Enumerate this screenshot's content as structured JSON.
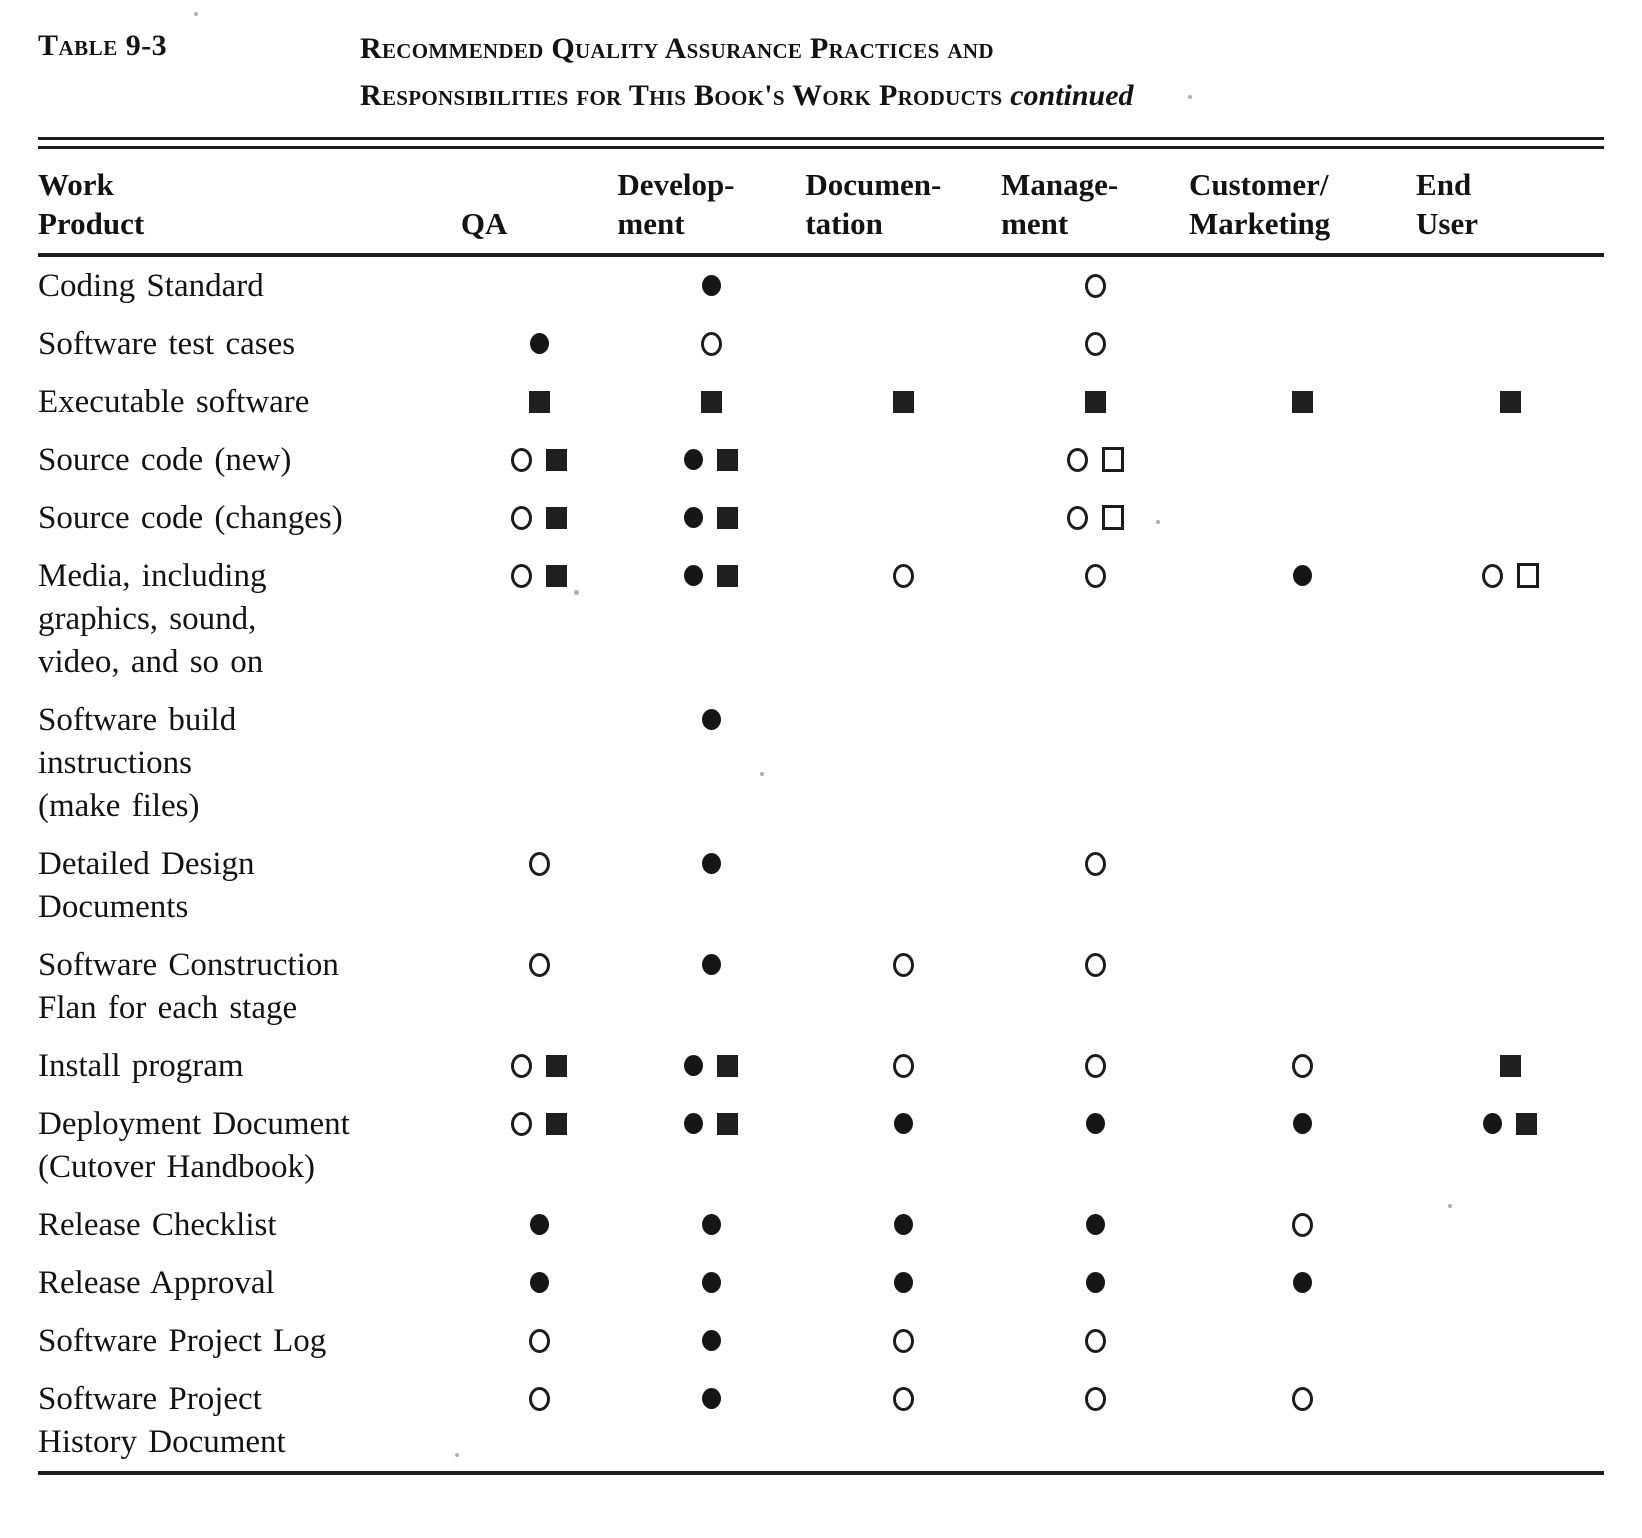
{
  "caption": {
    "label": "Table 9-3",
    "title_line1": "Recommended Quality Assurance Practices and",
    "title_line2": "Responsibilities for This Book's Work Products",
    "continued": "continued"
  },
  "columns": [
    {
      "key": "product",
      "lines": [
        "Work",
        "Product"
      ]
    },
    {
      "key": "qa",
      "lines": [
        "QA"
      ]
    },
    {
      "key": "development",
      "lines": [
        "Develop-",
        "ment"
      ]
    },
    {
      "key": "documentation",
      "lines": [
        "Documen-",
        "tation"
      ]
    },
    {
      "key": "management",
      "lines": [
        "Manage-",
        "ment"
      ]
    },
    {
      "key": "customer_marketing",
      "lines": [
        "Customer/",
        "Marketing"
      ]
    },
    {
      "key": "end_user",
      "lines": [
        "End",
        "User"
      ]
    }
  ],
  "symbol_legend": {
    "fc": "filled-circle",
    "oc": "open-circle",
    "fs": "filled-square",
    "os": "open-square"
  },
  "colors": {
    "ink": "#1d1d1d",
    "paper": "#ffffff"
  },
  "rows": [
    {
      "product_lines": [
        "Coding Standard"
      ],
      "qa": [],
      "development": [
        "fc"
      ],
      "documentation": [],
      "management": [
        "oc"
      ],
      "customer_marketing": [],
      "end_user": []
    },
    {
      "product_lines": [
        "Software test cases"
      ],
      "qa": [
        "fc"
      ],
      "development": [
        "oc"
      ],
      "documentation": [],
      "management": [
        "oc"
      ],
      "customer_marketing": [],
      "end_user": []
    },
    {
      "product_lines": [
        "Executable software"
      ],
      "qa": [
        "fs"
      ],
      "development": [
        "fs"
      ],
      "documentation": [
        "fs"
      ],
      "management": [
        "fs"
      ],
      "customer_marketing": [
        "fs"
      ],
      "end_user": [
        "fs"
      ]
    },
    {
      "product_lines": [
        "Source code (new)"
      ],
      "qa": [
        "oc",
        "fs"
      ],
      "development": [
        "fc",
        "fs"
      ],
      "documentation": [],
      "management": [
        "oc",
        "os"
      ],
      "customer_marketing": [],
      "end_user": []
    },
    {
      "product_lines": [
        "Source code (changes)"
      ],
      "qa": [
        "oc",
        "fs"
      ],
      "development": [
        "fc",
        "fs"
      ],
      "documentation": [],
      "management": [
        "oc",
        "os"
      ],
      "customer_marketing": [],
      "end_user": []
    },
    {
      "product_lines": [
        "Media, including",
        "graphics, sound,",
        "video, and so on"
      ],
      "qa": [
        "oc",
        "fs"
      ],
      "development": [
        "fc",
        "fs"
      ],
      "documentation": [
        "oc"
      ],
      "management": [
        "oc"
      ],
      "customer_marketing": [
        "fc"
      ],
      "end_user": [
        "oc",
        "os"
      ]
    },
    {
      "product_lines": [
        "Software build",
        "instructions",
        "(make files)"
      ],
      "qa": [],
      "development": [
        "fc"
      ],
      "documentation": [],
      "management": [],
      "customer_marketing": [],
      "end_user": []
    },
    {
      "product_lines": [
        "Detailed Design",
        "Documents"
      ],
      "qa": [
        "oc"
      ],
      "development": [
        "fc"
      ],
      "documentation": [],
      "management": [
        "oc"
      ],
      "customer_marketing": [],
      "end_user": []
    },
    {
      "product_lines": [
        "Software Construction",
        "Flan for each stage"
      ],
      "qa": [
        "oc"
      ],
      "development": [
        "fc"
      ],
      "documentation": [
        "oc"
      ],
      "management": [
        "oc"
      ],
      "customer_marketing": [],
      "end_user": []
    },
    {
      "product_lines": [
        "Install program"
      ],
      "qa": [
        "oc",
        "fs"
      ],
      "development": [
        "fc",
        "fs"
      ],
      "documentation": [
        "oc"
      ],
      "management": [
        "oc"
      ],
      "customer_marketing": [
        "oc"
      ],
      "end_user": [
        "fs"
      ]
    },
    {
      "product_lines": [
        "Deployment Document",
        "(Cutover Handbook)"
      ],
      "qa": [
        "oc",
        "fs"
      ],
      "development": [
        "fc",
        "fs"
      ],
      "documentation": [
        "fc"
      ],
      "management": [
        "fc"
      ],
      "customer_marketing": [
        "fc"
      ],
      "end_user": [
        "fc",
        "fs"
      ]
    },
    {
      "product_lines": [
        "Release Checklist"
      ],
      "qa": [
        "fc"
      ],
      "development": [
        "fc"
      ],
      "documentation": [
        "fc"
      ],
      "management": [
        "fc"
      ],
      "customer_marketing": [
        "oc"
      ],
      "end_user": []
    },
    {
      "product_lines": [
        "Release Approval"
      ],
      "qa": [
        "fc"
      ],
      "development": [
        "fc"
      ],
      "documentation": [
        "fc"
      ],
      "management": [
        "fc"
      ],
      "customer_marketing": [
        "fc"
      ],
      "end_user": []
    },
    {
      "product_lines": [
        "Software Project Log"
      ],
      "qa": [
        "oc"
      ],
      "development": [
        "fc"
      ],
      "documentation": [
        "oc"
      ],
      "management": [
        "oc"
      ],
      "customer_marketing": [],
      "end_user": []
    },
    {
      "product_lines": [
        "Software Project",
        "History Document"
      ],
      "qa": [
        "oc"
      ],
      "development": [
        "fc"
      ],
      "documentation": [
        "oc"
      ],
      "management": [
        "oc"
      ],
      "customer_marketing": [
        "oc"
      ],
      "end_user": []
    }
  ]
}
